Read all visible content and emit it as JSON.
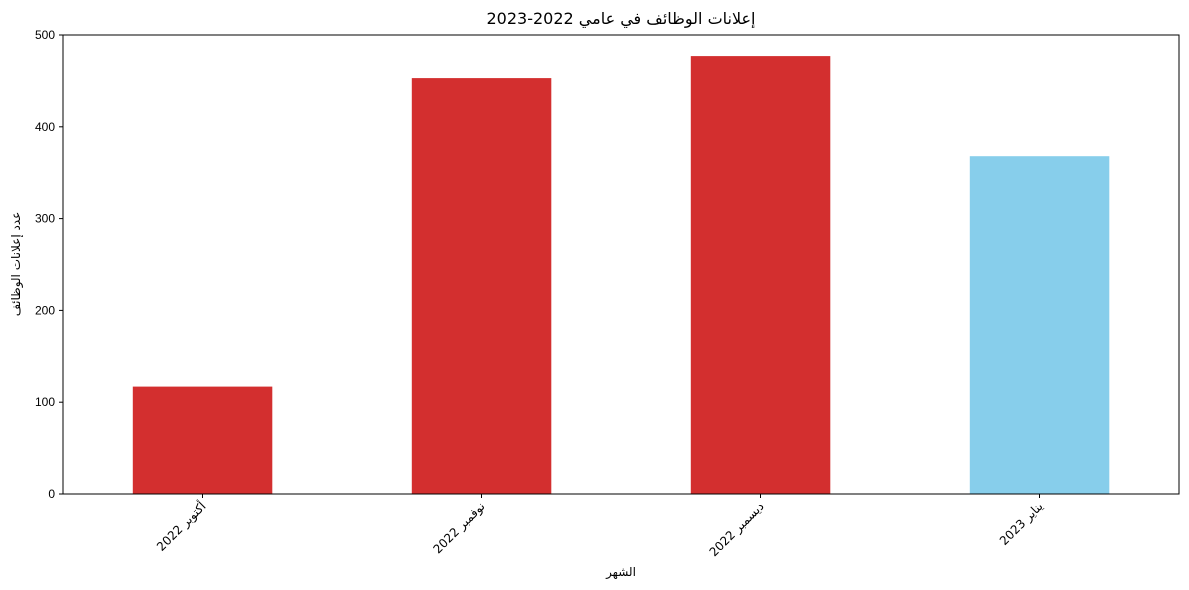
{
  "chart_data": {
    "type": "bar",
    "title": "إعلانات الوظائف في عامي 2022-2023",
    "xlabel": "الشهر",
    "ylabel": "عدد إعلانات الوظائف",
    "categories": [
      "أكتوبر 2022",
      "نوفمبر 2022",
      "ديسمبر 2022",
      "يناير 2023"
    ],
    "values": [
      117,
      453,
      477,
      368
    ],
    "bar_colors": [
      "#d32f2f",
      "#d32f2f",
      "#d32f2f",
      "#87ceeb"
    ],
    "ylim": [
      0,
      500
    ],
    "yticks": [
      0,
      100,
      200,
      300,
      400,
      500
    ],
    "grid": false,
    "legend": "none"
  }
}
